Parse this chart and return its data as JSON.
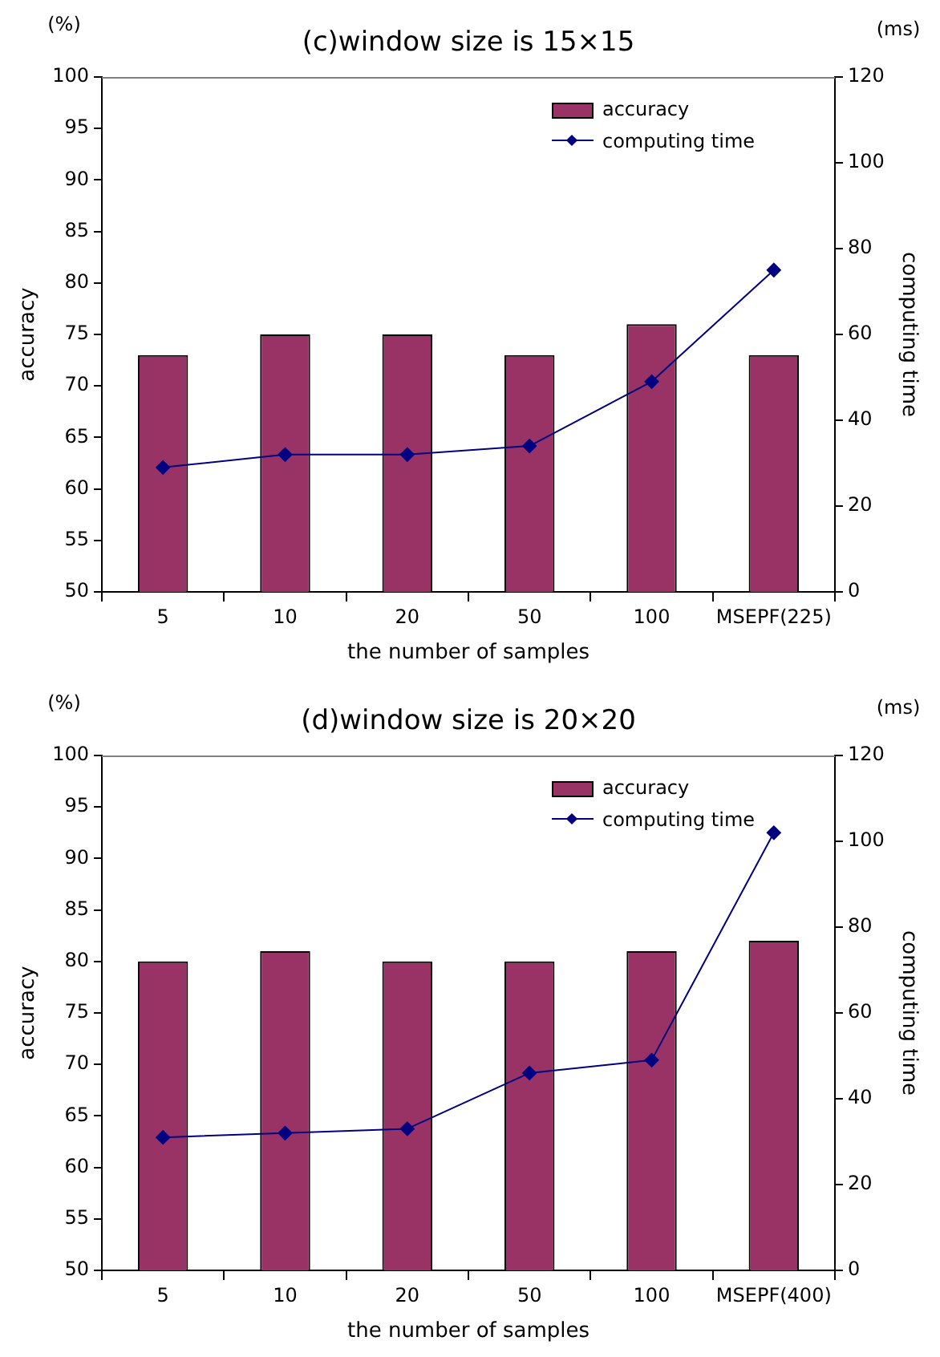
{
  "chart_data": [
    {
      "type": "bar",
      "title": "(c)window size is 15×15",
      "xlabel": "the number of samples",
      "ylabel": "accuracy",
      "y2label": "computing time",
      "annotations": [
        "(%)",
        "(ms)"
      ],
      "categories": [
        "5",
        "10",
        "20",
        "50",
        "100",
        "MSEPF(225)"
      ],
      "series": [
        {
          "name": "accuracy",
          "color": "#993366",
          "values": [
            73,
            75,
            75,
            73,
            76,
            73
          ]
        },
        {
          "name": "computing time",
          "type": "line",
          "axis": "y2",
          "color": "#000080",
          "marker": "diamond",
          "values": [
            29,
            32,
            32,
            34,
            49,
            75
          ]
        }
      ],
      "ylim": [
        50,
        100
      ],
      "yticks": [
        50,
        55,
        60,
        65,
        70,
        75,
        80,
        85,
        90,
        95,
        100
      ],
      "y2lim": [
        0,
        120
      ],
      "y2ticks": [
        0,
        20,
        40,
        60,
        80,
        100,
        120
      ],
      "grid": false,
      "legend": "top right"
    },
    {
      "type": "bar",
      "title": "(d)window size is 20×20",
      "xlabel": "the number of samples",
      "ylabel": "accuracy",
      "y2label": "computing time",
      "annotations": [
        "(%)",
        "(ms)"
      ],
      "categories": [
        "5",
        "10",
        "20",
        "50",
        "100",
        "MSEPF(400)"
      ],
      "series": [
        {
          "name": "accuracy",
          "color": "#993366",
          "values": [
            80,
            81,
            80,
            80,
            81,
            82
          ]
        },
        {
          "name": "computing time",
          "type": "line",
          "axis": "y2",
          "color": "#000080",
          "marker": "diamond",
          "values": [
            31,
            32,
            33,
            46,
            49,
            102
          ]
        }
      ],
      "ylim": [
        50,
        100
      ],
      "yticks": [
        50,
        55,
        60,
        65,
        70,
        75,
        80,
        85,
        90,
        95,
        100
      ],
      "y2lim": [
        0,
        120
      ],
      "y2ticks": [
        0,
        20,
        40,
        60,
        80,
        100,
        120
      ],
      "grid": false,
      "legend": "top right"
    }
  ]
}
